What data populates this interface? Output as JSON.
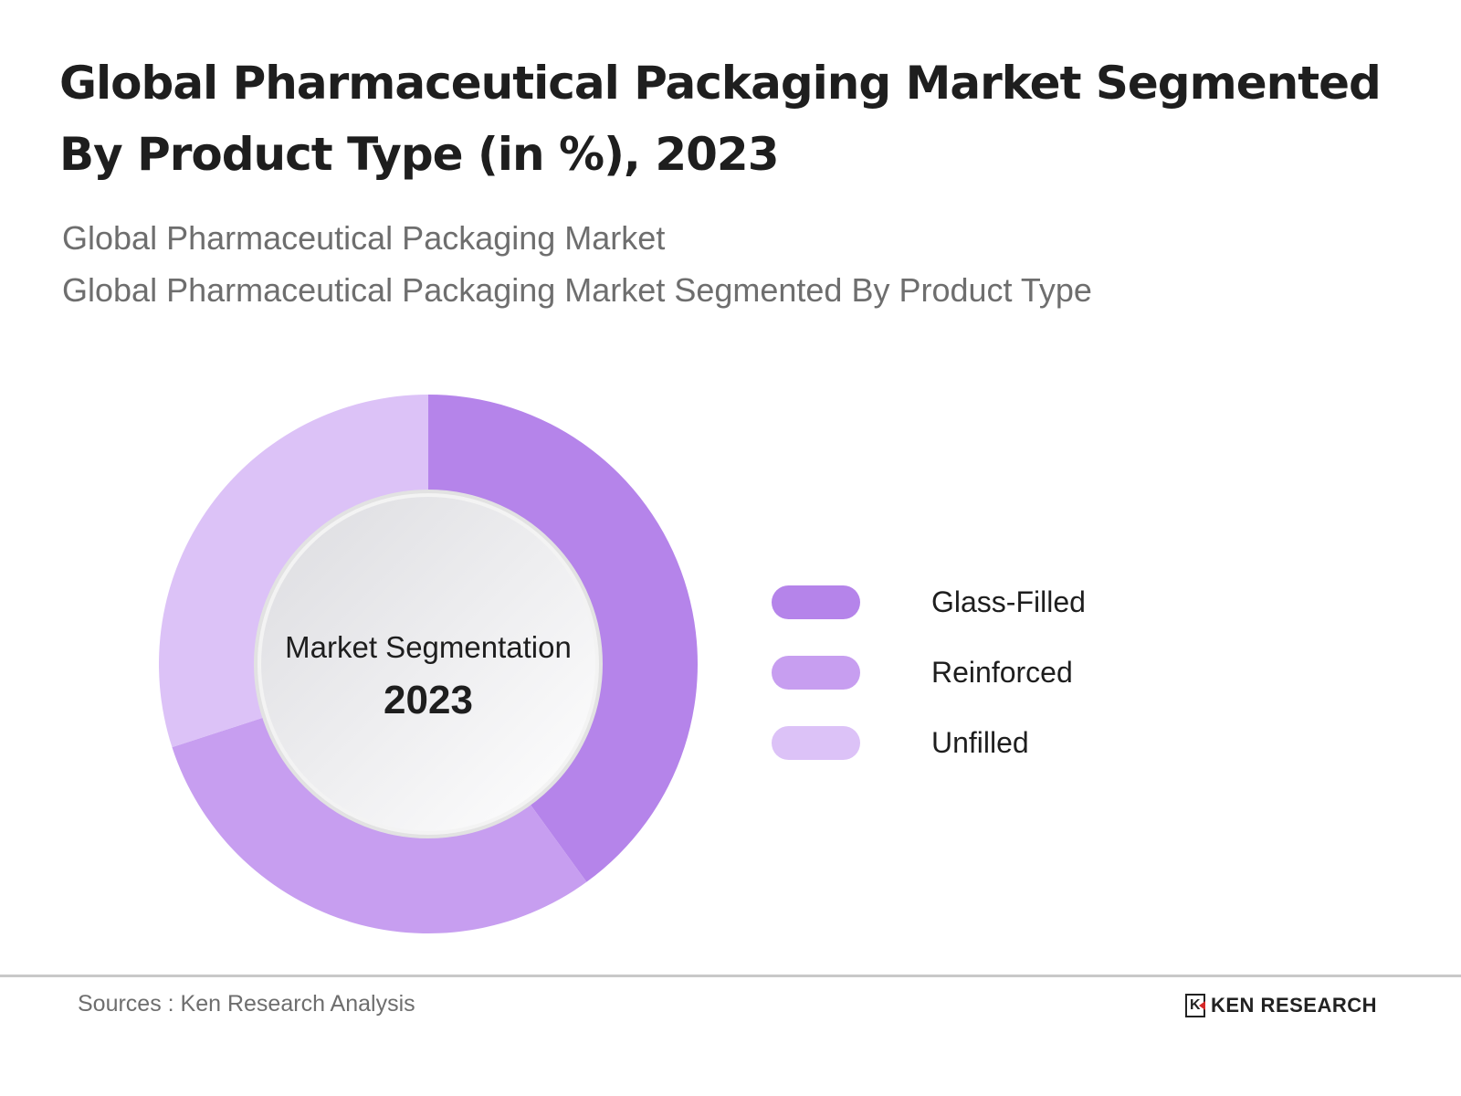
{
  "title": "Global Pharmaceutical Packaging Market Segmented By Product Type (in %), 2023",
  "subtitles": [
    "Global Pharmaceutical Packaging Market",
    "Global Pharmaceutical Packaging Market Segmented By Product Type"
  ],
  "chart_data": {
    "type": "pie",
    "variant": "donut",
    "title": "Global Pharmaceutical Packaging Market Segmented By Product Type (in %), 2023",
    "center_label": "Market Segmentation",
    "center_value": "2023",
    "categories": [
      "Glass-Filled",
      "Reinforced",
      "Unfilled"
    ],
    "values": [
      40,
      30,
      30
    ],
    "colors": [
      "#b584ea",
      "#c79ef0",
      "#dcc2f7"
    ],
    "legend_placement": "right"
  },
  "footer": {
    "source": "Sources : Ken Research Analysis",
    "logo_text": "KEN RESEARCH",
    "logo_mark": "K"
  }
}
